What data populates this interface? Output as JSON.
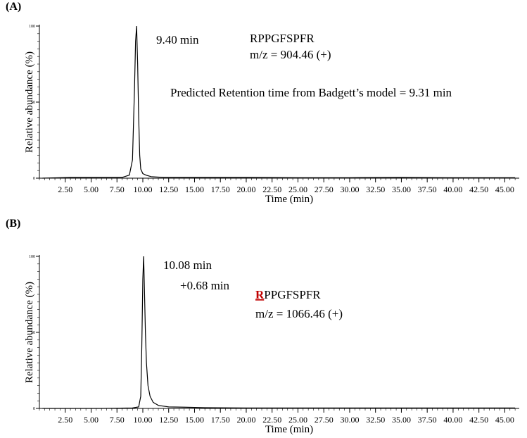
{
  "chart_data": [
    {
      "type": "line",
      "panel_label": "(A)",
      "x_label": "Time (min)",
      "y_label": "Relative abundance (%)",
      "xlim": [
        0,
        46.4
      ],
      "ylim": [
        0,
        100
      ],
      "xticks": [
        {
          "value": 2.5,
          "label": "2.50"
        },
        {
          "value": 5,
          "label": "5.00"
        },
        {
          "value": 7.5,
          "label": "7.50"
        },
        {
          "value": 10,
          "label": "10.00"
        },
        {
          "value": 12.5,
          "label": "12.50"
        },
        {
          "value": 15,
          "label": "15.00"
        },
        {
          "value": 17.5,
          "label": "17.50"
        },
        {
          "value": 20,
          "label": "20.00"
        },
        {
          "value": 22.5,
          "label": "22.50"
        },
        {
          "value": 25,
          "label": "25.00"
        },
        {
          "value": 27.5,
          "label": "27.50"
        },
        {
          "value": 30,
          "label": "30.00"
        },
        {
          "value": 32.5,
          "label": "32.50"
        },
        {
          "value": 35,
          "label": "35.00"
        },
        {
          "value": 37.5,
          "label": "37.50"
        },
        {
          "value": 40,
          "label": "40.00"
        },
        {
          "value": 42.5,
          "label": "42.50"
        },
        {
          "value": 45,
          "label": "45.00"
        }
      ],
      "yticks": [
        0,
        50,
        100
      ],
      "color": "#000000",
      "x": [
        0.3,
        3,
        6,
        8,
        8.7,
        9.0,
        9.2,
        9.3,
        9.4,
        9.5,
        9.6,
        9.7,
        9.8,
        10.0,
        10.3,
        10.8,
        12,
        15,
        20,
        25,
        30,
        35,
        40,
        46
      ],
      "values": [
        0,
        0.5,
        0.5,
        0.5,
        2,
        12,
        60,
        90,
        100,
        75,
        40,
        15,
        6,
        3,
        2,
        1,
        0.5,
        0.5,
        0.5,
        0.3,
        0.3,
        0.5,
        0.3,
        0.3
      ],
      "annotations": [
        {
          "text": "9.40 min",
          "color": "#7030a0"
        },
        {
          "text": "RPPGFSPFR",
          "color": "#000000"
        },
        {
          "text": "m/z = 904.46 (+)",
          "color": "#000000"
        },
        {
          "text": "Predicted Retention time from Badgett’s model = 9.31 min",
          "color": "#000000"
        }
      ]
    },
    {
      "type": "line",
      "panel_label": "(B)",
      "x_label": "Time (min)",
      "y_label": "Relative abundance (%)",
      "xlim": [
        0,
        46.4
      ],
      "ylim": [
        0,
        100
      ],
      "xticks": [
        {
          "value": 2.5,
          "label": "2.50"
        },
        {
          "value": 5,
          "label": "5.00"
        },
        {
          "value": 7.5,
          "label": "7.50"
        },
        {
          "value": 10,
          "label": "10.00"
        },
        {
          "value": 12.5,
          "label": "12.50"
        },
        {
          "value": 15,
          "label": "15.00"
        },
        {
          "value": 17.5,
          "label": "17.50"
        },
        {
          "value": 20,
          "label": "20.00"
        },
        {
          "value": 22.5,
          "label": "22.50"
        },
        {
          "value": 25,
          "label": "25.00"
        },
        {
          "value": 27.5,
          "label": "27.50"
        },
        {
          "value": 30,
          "label": "30.00"
        },
        {
          "value": 32.5,
          "label": "32.50"
        },
        {
          "value": 35,
          "label": "35.00"
        },
        {
          "value": 37.5,
          "label": "37.50"
        },
        {
          "value": 40,
          "label": "40.00"
        },
        {
          "value": 42.5,
          "label": "42.50"
        },
        {
          "value": 45,
          "label": "45.00"
        }
      ],
      "yticks": [
        0,
        50,
        100
      ],
      "color": "#000000",
      "x": [
        0.3,
        3,
        6,
        9,
        9.6,
        9.8,
        9.9,
        10.0,
        10.08,
        10.15,
        10.25,
        10.35,
        10.5,
        10.7,
        11,
        11.5,
        12.5,
        14,
        16,
        20,
        30,
        40,
        46
      ],
      "values": [
        0,
        0,
        0,
        0.3,
        1,
        8,
        40,
        85,
        100,
        80,
        50,
        30,
        15,
        8,
        4,
        2,
        1,
        0.8,
        0.5,
        0.3,
        0.3,
        0.3,
        0.3
      ],
      "annotations": [
        {
          "text": "10.08 min",
          "color": "#7030a0"
        },
        {
          "text": "+0.68 min",
          "color": "#548235"
        },
        {
          "highlight": "R",
          "highlight_color": "#c00000",
          "text": "PPGFSPFR",
          "color": "#000000"
        },
        {
          "text": "m/z = 1066.46 (+)",
          "color": "#000000"
        }
      ]
    }
  ]
}
